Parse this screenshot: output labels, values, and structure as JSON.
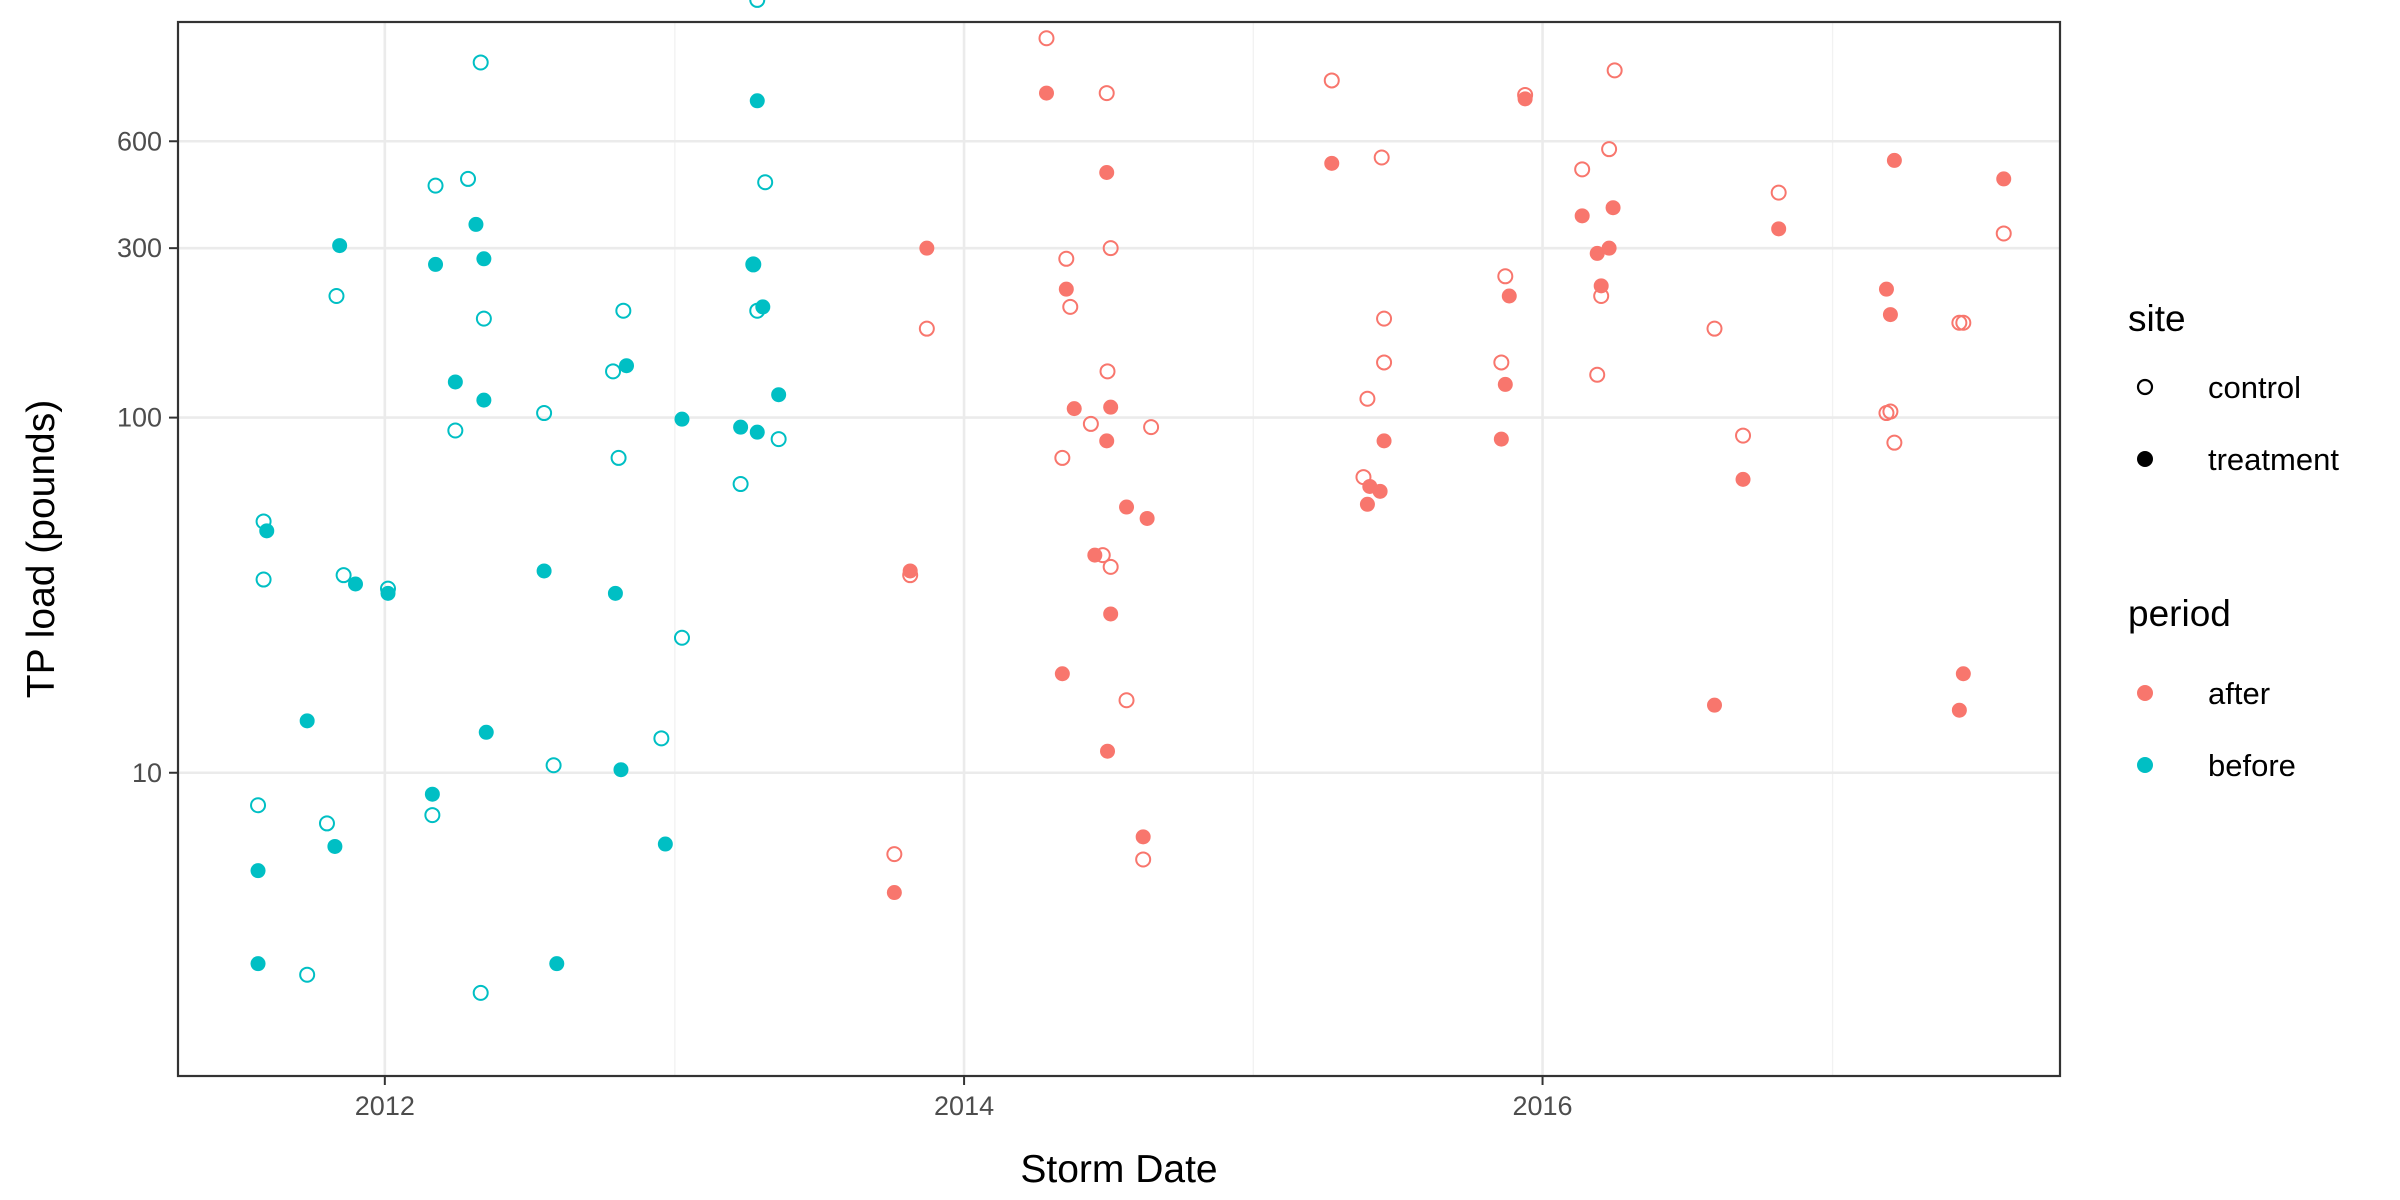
{
  "chart_data": {
    "type": "scatter",
    "title": "",
    "xlabel": "Storm Date",
    "ylabel": "TP load (pounds)",
    "xlim": [
      "2011-04-15",
      "2017-10-15"
    ],
    "ylim": [
      1.4,
      1300
    ],
    "y_scale": "log10",
    "x_ticks": [
      "2012",
      "2014",
      "2016"
    ],
    "x_minor_ticks": [
      "2013",
      "2015",
      "2017"
    ],
    "y_ticks": [
      "10",
      "100",
      "300",
      "600"
    ],
    "grid": true,
    "legend_position": "right",
    "legends": {
      "site": {
        "title": "site",
        "entries": [
          "control",
          "treatment"
        ]
      },
      "period": {
        "title": "period",
        "entries": [
          "after",
          "before"
        ]
      }
    },
    "colors": {
      "after": "#F8766D",
      "before": "#00BFC4"
    },
    "series": [
      {
        "site": "control",
        "period": "before",
        "points": [
          [
            "2011-07-25",
            8.1
          ],
          [
            "2011-08-01",
            51
          ],
          [
            "2011-08-01",
            35
          ],
          [
            "2011-09-25",
            2.7
          ],
          [
            "2011-10-20",
            7.2
          ],
          [
            "2011-11-01",
            220
          ],
          [
            "2011-11-10",
            36
          ],
          [
            "2012-01-05",
            33
          ],
          [
            "2012-03-01",
            7.6
          ],
          [
            "2012-03-05",
            450
          ],
          [
            "2012-03-30",
            92
          ],
          [
            "2012-04-15",
            470
          ],
          [
            "2012-05-01",
            1000
          ],
          [
            "2012-05-01",
            2.4
          ],
          [
            "2012-05-05",
            190
          ],
          [
            "2012-07-20",
            103
          ],
          [
            "2012-08-01",
            10.5
          ],
          [
            "2012-10-15",
            135
          ],
          [
            "2012-10-22",
            77
          ],
          [
            "2012-10-28",
            200
          ],
          [
            "2012-12-15",
            12.5
          ],
          [
            "2013-01-10",
            24
          ],
          [
            "2013-03-25",
            65
          ],
          [
            "2013-04-10",
            270
          ],
          [
            "2013-04-15",
            200
          ],
          [
            "2013-04-15",
            1500
          ],
          [
            "2013-04-25",
            460
          ],
          [
            "2013-05-12",
            87
          ]
        ]
      },
      {
        "site": "treatment",
        "period": "before",
        "points": [
          [
            "2011-07-25",
            5.3
          ],
          [
            "2011-07-25",
            2.9
          ],
          [
            "2011-08-05",
            48
          ],
          [
            "2011-09-25",
            14
          ],
          [
            "2011-10-30",
            6.2
          ],
          [
            "2011-11-05",
            305
          ],
          [
            "2011-11-25",
            34
          ],
          [
            "2012-01-05",
            32
          ],
          [
            "2012-03-01",
            8.7
          ],
          [
            "2012-03-05",
            270
          ],
          [
            "2012-03-30",
            126
          ],
          [
            "2012-04-25",
            350
          ],
          [
            "2012-05-05",
            280
          ],
          [
            "2012-05-05",
            112
          ],
          [
            "2012-05-08",
            13
          ],
          [
            "2012-07-20",
            37
          ],
          [
            "2012-08-05",
            2.9
          ],
          [
            "2012-10-18",
            32
          ],
          [
            "2012-10-25",
            10.2
          ],
          [
            "2012-11-01",
            140
          ],
          [
            "2012-12-20",
            6.3
          ],
          [
            "2013-01-10",
            99
          ],
          [
            "2013-03-25",
            94
          ],
          [
            "2013-04-10",
            270
          ],
          [
            "2013-04-15",
            91
          ],
          [
            "2013-04-15",
            780
          ],
          [
            "2013-04-22",
            205
          ],
          [
            "2013-05-12",
            116
          ]
        ]
      },
      {
        "site": "control",
        "period": "after",
        "points": [
          [
            "2013-10-05",
            5.9
          ],
          [
            "2013-10-25",
            36
          ],
          [
            "2013-11-15",
            178
          ],
          [
            "2014-04-15",
            1170
          ],
          [
            "2014-05-05",
            77
          ],
          [
            "2014-05-10",
            280
          ],
          [
            "2014-05-15",
            205
          ],
          [
            "2014-06-10",
            96
          ],
          [
            "2014-06-25",
            41
          ],
          [
            "2014-06-30",
            820
          ],
          [
            "2014-07-01",
            135
          ],
          [
            "2014-07-05",
            300
          ],
          [
            "2014-07-05",
            38
          ],
          [
            "2014-07-25",
            16
          ],
          [
            "2014-08-15",
            5.7
          ],
          [
            "2014-08-25",
            94
          ],
          [
            "2015-04-10",
            890
          ],
          [
            "2015-05-20",
            68
          ],
          [
            "2015-05-25",
            113
          ],
          [
            "2015-06-12",
            540
          ],
          [
            "2015-06-15",
            190
          ],
          [
            "2015-06-15",
            143
          ],
          [
            "2015-11-10",
            143
          ],
          [
            "2015-11-15",
            250
          ],
          [
            "2015-12-10",
            810
          ],
          [
            "2016-02-20",
            500
          ],
          [
            "2016-03-10",
            132
          ],
          [
            "2016-03-15",
            220
          ],
          [
            "2016-03-25",
            570
          ],
          [
            "2016-04-01",
            950
          ],
          [
            "2016-08-05",
            178
          ],
          [
            "2016-09-10",
            89
          ],
          [
            "2016-10-25",
            430
          ],
          [
            "2017-03-10",
            103
          ],
          [
            "2017-03-15",
            104
          ],
          [
            "2017-03-20",
            85
          ],
          [
            "2017-06-10",
            185
          ],
          [
            "2017-06-15",
            185
          ],
          [
            "2017-08-05",
            330
          ]
        ]
      },
      {
        "site": "treatment",
        "period": "after",
        "points": [
          [
            "2013-10-05",
            4.6
          ],
          [
            "2013-10-25",
            37
          ],
          [
            "2013-11-15",
            300
          ],
          [
            "2014-04-15",
            820
          ],
          [
            "2014-05-05",
            19
          ],
          [
            "2014-05-10",
            230
          ],
          [
            "2014-05-20",
            106
          ],
          [
            "2014-06-15",
            41
          ],
          [
            "2014-06-30",
            490
          ],
          [
            "2014-06-30",
            86
          ],
          [
            "2014-07-01",
            11.5
          ],
          [
            "2014-07-05",
            107
          ],
          [
            "2014-07-05",
            28
          ],
          [
            "2014-07-25",
            56
          ],
          [
            "2014-08-15",
            6.6
          ],
          [
            "2014-08-20",
            52
          ],
          [
            "2015-04-10",
            520
          ],
          [
            "2015-05-25",
            57
          ],
          [
            "2015-05-28",
            64
          ],
          [
            "2015-06-10",
            62
          ],
          [
            "2015-06-15",
            86
          ],
          [
            "2015-11-10",
            87
          ],
          [
            "2015-11-15",
            124
          ],
          [
            "2015-11-20",
            220
          ],
          [
            "2015-12-10",
            790
          ],
          [
            "2016-02-20",
            370
          ],
          [
            "2016-03-10",
            290
          ],
          [
            "2016-03-15",
            235
          ],
          [
            "2016-03-25",
            300
          ],
          [
            "2016-03-30",
            390
          ],
          [
            "2016-08-05",
            15.5
          ],
          [
            "2016-09-10",
            67
          ],
          [
            "2016-10-25",
            340
          ],
          [
            "2017-03-10",
            230
          ],
          [
            "2017-03-15",
            195
          ],
          [
            "2017-03-20",
            530
          ],
          [
            "2017-06-10",
            15
          ],
          [
            "2017-06-15",
            19
          ],
          [
            "2017-08-05",
            470
          ]
        ]
      }
    ]
  }
}
